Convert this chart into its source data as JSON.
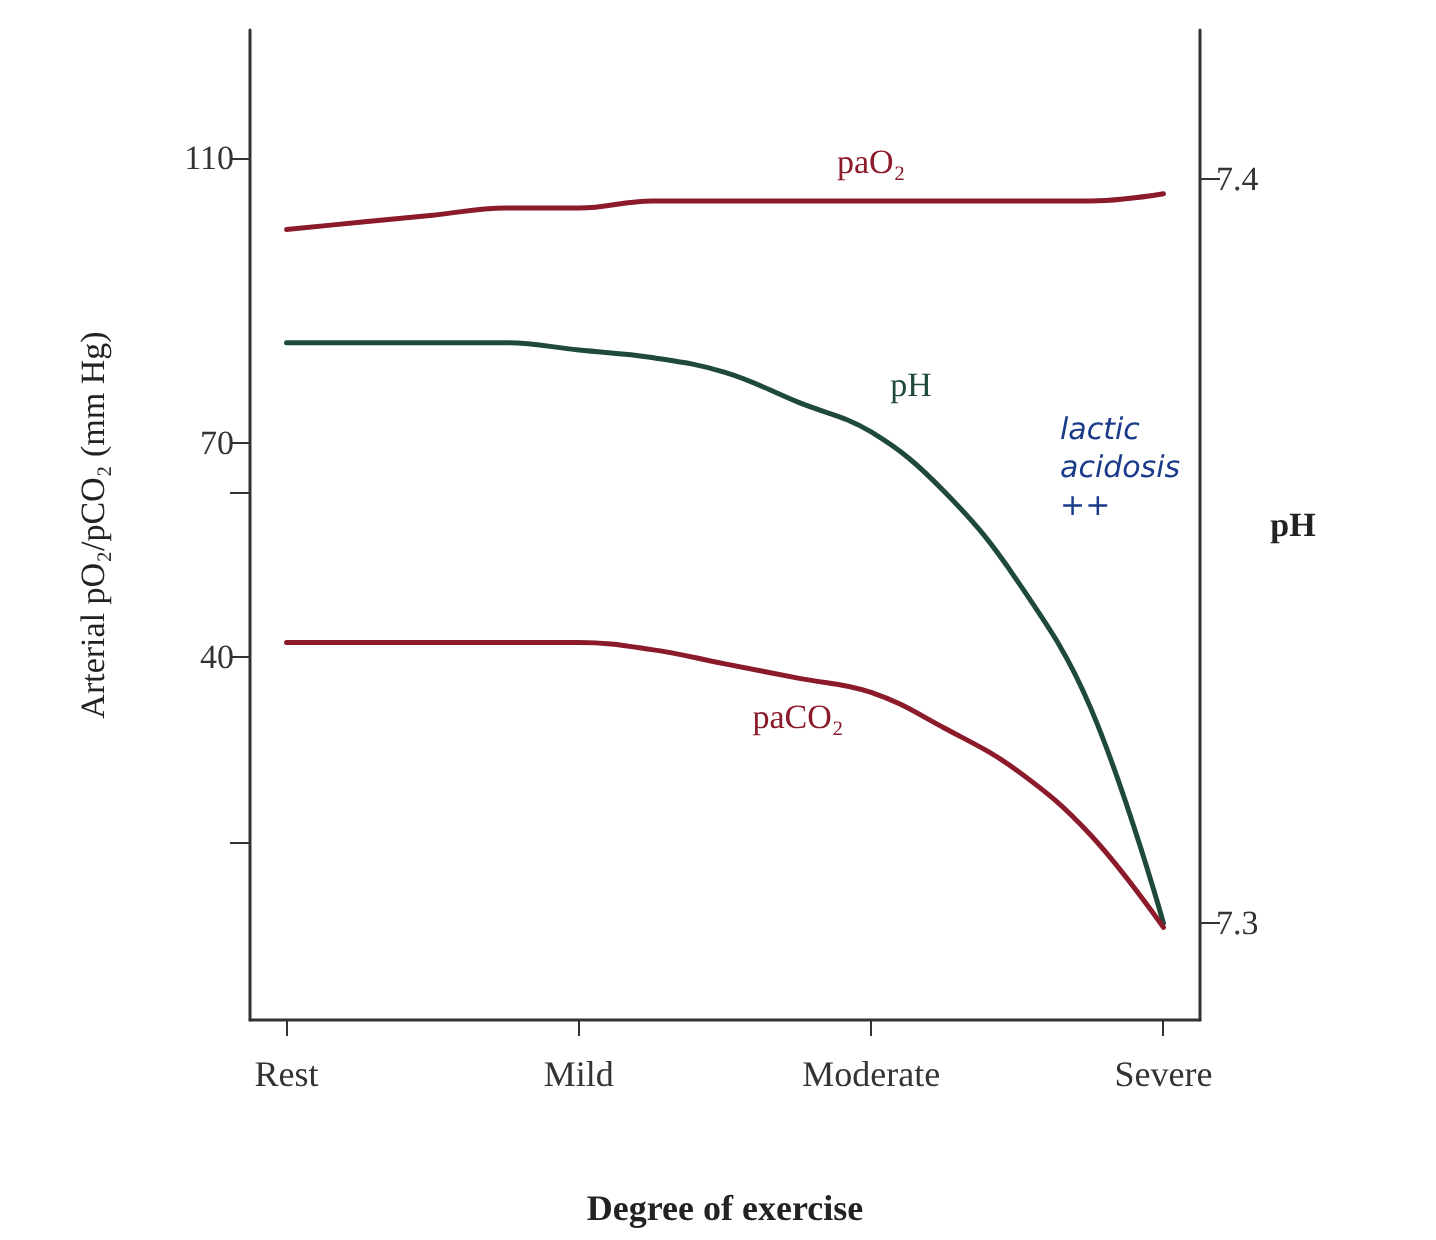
{
  "chart_data": {
    "type": "line",
    "xlabel": "Degree of exercise",
    "ylabel": "Arterial pO₂/pCO₂ (mm Hg)",
    "y2label": "pH",
    "categories": [
      "Rest",
      null,
      null,
      null,
      "Mild",
      null,
      null,
      null,
      "Moderate",
      null,
      null,
      null,
      "Severe"
    ],
    "ylim": [
      -11,
      128
    ],
    "yticks": [
      {
        "value": 14,
        "label": null
      },
      40,
      {
        "value": 63,
        "label": null
      },
      70,
      110
    ],
    "y2lim": [
      7.287,
      7.42
    ],
    "y2ticks": [
      7.3,
      7.4
    ],
    "series": [
      {
        "name": "paO₂",
        "color": "#8b1a2b",
        "values": [
          100,
          101,
          102,
          103,
          103,
          104,
          104,
          104,
          104,
          104,
          104,
          104,
          105
        ]
      },
      {
        "name": "pH",
        "color": "#1f4a3a",
        "axis": "y2",
        "values": [
          7.378,
          7.378,
          7.378,
          7.378,
          7.377,
          7.376,
          7.374,
          7.37,
          7.366,
          7.358,
          7.346,
          7.329,
          7.3
        ]
      },
      {
        "name": "paCO₂",
        "color": "#8b1a2b",
        "values": [
          42,
          42,
          42,
          42,
          42,
          41,
          39,
          37,
          35,
          30,
          24,
          15,
          2
        ]
      }
    ],
    "annotations": [
      "lactic acidosis ++"
    ],
    "grid": false,
    "legend": false,
    "marker": "none",
    "line_style": "solid"
  }
}
